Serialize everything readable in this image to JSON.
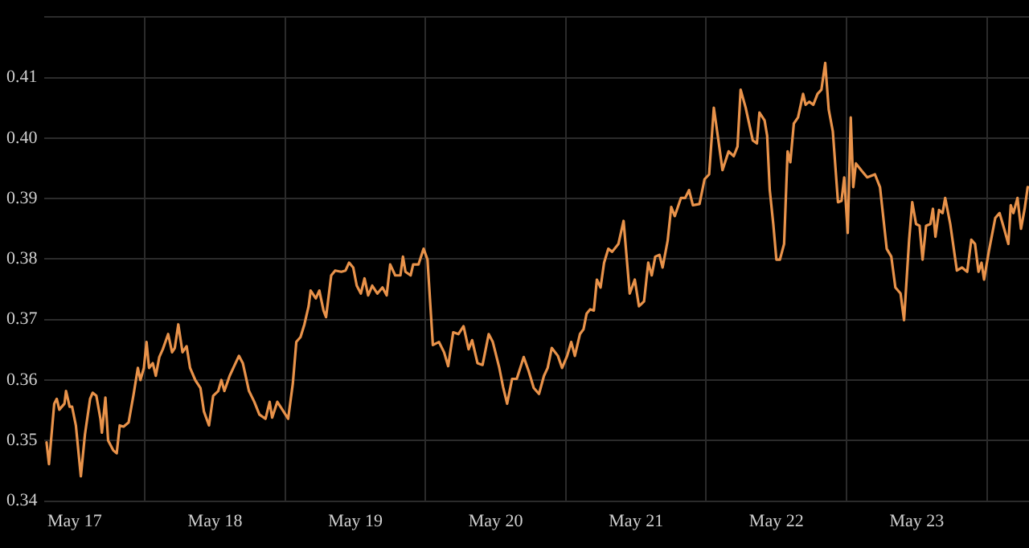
{
  "chart_data": {
    "type": "line",
    "xlim": [
      "--05-16T18:43",
      "--05-23T19:12"
    ],
    "ylim": [
      0.34,
      0.42
    ],
    "xticks": [
      {
        "value": "--05-17",
        "label": "May 17"
      },
      {
        "value": "--05-17T12:00",
        "label": null
      },
      {
        "value": "--05-18",
        "label": "May 18"
      },
      {
        "value": "--05-18T12:00",
        "label": null
      },
      {
        "value": "--05-19",
        "label": "May 19"
      },
      {
        "value": "--05-19T12:00",
        "label": null
      },
      {
        "value": "--05-20",
        "label": "May 20"
      },
      {
        "value": "--05-20T12:00",
        "label": null
      },
      {
        "value": "--05-21",
        "label": "May 21"
      },
      {
        "value": "--05-21T12:00",
        "label": null
      },
      {
        "value": "--05-22",
        "label": "May 22"
      },
      {
        "value": "--05-22T12:00",
        "label": null
      },
      {
        "value": "--05-23",
        "label": "May 23"
      },
      {
        "value": "--05-23T12:00",
        "label": null
      }
    ],
    "yticks": [
      0.34,
      0.35,
      0.36,
      0.37,
      0.38,
      0.39,
      {
        "value": 0.4,
        "label": "0.40"
      },
      0.41,
      {
        "value": 0.42,
        "label": null
      }
    ],
    "grid": true,
    "legend": false,
    "marker": "none",
    "line_style": "solid",
    "series": [
      {
        "color": "#e8924a",
        "x": [
          "--05-16T19:11",
          "--05-16T19:36",
          "--05-16T20:30",
          "--05-16T20:56",
          "--05-16T21:22",
          "--05-16T22:15",
          "--05-16T22:31",
          "--05-16T23:08",
          "--05-16T23:33",
          "--05-17T00:12",
          "--05-17T01:03",
          "--05-17T01:45",
          "--05-17T02:38",
          "--05-17T03:04",
          "--05-17T03:42",
          "--05-17T04:24",
          "--05-17T04:39",
          "--05-17T05:15",
          "--05-17T05:43",
          "--05-17T06:35",
          "--05-17T07:11",
          "--05-17T07:42",
          "--05-17T08:21",
          "--05-17T09:13",
          "--05-17T10:05",
          "--05-17T10:48",
          "--05-17T11:14",
          "--05-17T11:50",
          "--05-17T12:17",
          "--05-17T12:43",
          "--05-17T13:21",
          "--05-17T13:52",
          "--05-17T14:28",
          "--05-17T15:04",
          "--05-17T15:59",
          "--05-17T16:39",
          "--05-17T17:07",
          "--05-17T17:43",
          "--05-17T18:26",
          "--05-17T19:08",
          "--05-17T19:44",
          "--05-17T20:37",
          "--05-17T21:30",
          "--05-17T22:06",
          "--05-17T22:58",
          "--05-17T23:41",
          "--05-18T00:33",
          "--05-18T01:05",
          "--05-18T01:36",
          "--05-18T02:30",
          "--05-18T03:22",
          "--05-18T04:05",
          "--05-18T04:45",
          "--05-18T05:48",
          "--05-18T06:43",
          "--05-18T07:35",
          "--05-18T08:38",
          "--05-18T09:20",
          "--05-18T09:46",
          "--05-18T10:39",
          "--05-18T11:31",
          "--05-18T12:30",
          "--05-18T13:18",
          "--05-18T13:54",
          "--05-18T14:37",
          "--05-18T15:17",
          "--05-18T16:00",
          "--05-18T16:21",
          "--05-18T17:14",
          "--05-18T17:50",
          "--05-18T18:33",
          "--05-18T18:59",
          "--05-18T19:52",
          "--05-18T20:33",
          "--05-18T21:36",
          "--05-18T22:19",
          "--05-18T22:55",
          "--05-18T23:38",
          "--05-19T00:14",
          "--05-19T00:56",
          "--05-19T01:34",
          "--05-19T02:11",
          "--05-19T02:53",
          "--05-19T03:46",
          "--05-19T04:38",
          "--05-19T05:21",
          "--05-19T05:57",
          "--05-19T06:49",
          "--05-19T07:42",
          "--05-19T08:08",
          "--05-19T08:34",
          "--05-19T09:27",
          "--05-19T09:53",
          "--05-19T10:47",
          "--05-19T11:40",
          "--05-19T12:20",
          "--05-19T13:15",
          "--05-19T14:17",
          "--05-19T15:10",
          "--05-19T15:52",
          "--05-19T16:44",
          "--05-19T17:37",
          "--05-19T18:30",
          "--05-19T19:22",
          "--05-19T19:58",
          "--05-19T20:53",
          "--05-19T21:45",
          "--05-19T22:48",
          "--05-19T23:30",
          "--05-20T00:37",
          "--05-20T01:15",
          "--05-20T01:57",
          "--05-20T02:48",
          "--05-20T03:36",
          "--05-20T04:47",
          "--05-20T05:38",
          "--05-20T06:30",
          "--05-20T07:24",
          "--05-20T08:15",
          "--05-20T08:53",
          "--05-20T09:35",
          "--05-20T10:38",
          "--05-20T11:21",
          "--05-20T12:13",
          "--05-20T12:55",
          "--05-20T13:32",
          "--05-20T14:24",
          "--05-20T15:01",
          "--05-20T15:33",
          "--05-20T16:09",
          "--05-20T16:47",
          "--05-20T17:18",
          "--05-20T17:56",
          "--05-20T18:32",
          "--05-20T19:15",
          "--05-20T19:55",
          "--05-20T20:59",
          "--05-20T21:52",
          "--05-20T22:55",
          "--05-20T23:47",
          "--05-21T00:30",
          "--05-21T01:22",
          "--05-21T02:05",
          "--05-21T02:41",
          "--05-21T03:17",
          "--05-21T04:00",
          "--05-21T04:32",
          "--05-21T05:24",
          "--05-21T06:01",
          "--05-21T06:37",
          "--05-21T07:41",
          "--05-21T08:24",
          "--05-21T09:04",
          "--05-21T09:43",
          "--05-21T10:51",
          "--05-21T11:43",
          "--05-21T12:30",
          "--05-21T13:18",
          "--05-21T14:05",
          "--05-21T14:47",
          "--05-21T15:50",
          "--05-21T16:42",
          "--05-21T17:21",
          "--05-21T17:53",
          "--05-21T18:45",
          "--05-21T19:58",
          "--05-21T20:40",
          "--05-21T21:06",
          "--05-21T21:59",
          "--05-21T22:25",
          "--05-21T22:52",
          "--05-21T23:28",
          "--05-22T00:00",
          "--05-22T00:36",
          "--05-22T01:19",
          "--05-22T01:55",
          "--05-22T02:23",
          "--05-22T02:59",
          "--05-22T03:42",
          "--05-22T04:34",
          "--05-22T05:00",
          "--05-22T05:37",
          "--05-22T06:19",
          "--05-22T07:02",
          "--05-22T07:42",
          "--05-22T08:21",
          "--05-22T08:57",
          "--05-22T09:39",
          "--05-22T10:32",
          "--05-22T11:08",
          "--05-22T11:36",
          "--05-22T12:12",
          "--05-22T12:43",
          "--05-22T13:09",
          "--05-22T13:36",
          "--05-22T14:40",
          "--05-22T15:32",
          "--05-22T16:51",
          "--05-22T17:43",
          "--05-22T18:52",
          "--05-22T19:39",
          "--05-22T20:21",
          "--05-22T21:14",
          "--05-22T21:50",
          "--05-22T22:42",
          "--05-22T23:14",
          "--05-22T23:53",
          "--05-23T00:29",
          "--05-23T01:00",
          "--05-23T01:36",
          "--05-23T02:20",
          "--05-23T02:46",
          "--05-23T03:12",
          "--05-23T03:49",
          "--05-23T04:25",
          "--05-23T04:52",
          "--05-23T05:44",
          "--05-23T06:52",
          "--05-23T07:45",
          "--05-23T08:38",
          "--05-23T09:20",
          "--05-23T09:58",
          "--05-23T10:34",
          "--05-23T11:05",
          "--05-23T11:31",
          "--05-23T12:19",
          "--05-23T13:26",
          "--05-23T14:10",
          "--05-23T14:57",
          "--05-23T15:40",
          "--05-23T16:05",
          "--05-23T16:32",
          "--05-23T17:14",
          "--05-23T17:50",
          "--05-23T18:27",
          "--05-23T18:59"
        ],
        "values": [
          0.3497,
          0.3461,
          0.3561,
          0.3569,
          0.3551,
          0.3561,
          0.3582,
          0.3556,
          0.3556,
          0.3525,
          0.3441,
          0.351,
          0.3569,
          0.3579,
          0.3574,
          0.3536,
          0.3513,
          0.3571,
          0.35,
          0.3484,
          0.3479,
          0.3525,
          0.3523,
          0.353,
          0.3577,
          0.362,
          0.36,
          0.362,
          0.3663,
          0.362,
          0.3628,
          0.3607,
          0.3638,
          0.3651,
          0.3676,
          0.3646,
          0.3653,
          0.3692,
          0.3646,
          0.3656,
          0.362,
          0.36,
          0.3587,
          0.3548,
          0.3525,
          0.3574,
          0.3582,
          0.36,
          0.3582,
          0.3607,
          0.3625,
          0.364,
          0.3628,
          0.3582,
          0.3564,
          0.3543,
          0.3536,
          0.3564,
          0.3538,
          0.3564,
          0.3551,
          0.3536,
          0.3594,
          0.3663,
          0.3671,
          0.3692,
          0.3722,
          0.3748,
          0.3735,
          0.3748,
          0.3715,
          0.3704,
          0.3773,
          0.3781,
          0.3779,
          0.3781,
          0.3794,
          0.3786,
          0.3756,
          0.3743,
          0.3768,
          0.374,
          0.3756,
          0.3743,
          0.3753,
          0.374,
          0.3791,
          0.3773,
          0.3773,
          0.3804,
          0.3779,
          0.3773,
          0.3791,
          0.3791,
          0.3817,
          0.3799,
          0.3658,
          0.3663,
          0.3646,
          0.3623,
          0.3679,
          0.3676,
          0.3689,
          0.3651,
          0.3666,
          0.3628,
          0.3625,
          0.3676,
          0.3663,
          0.362,
          0.3589,
          0.3561,
          0.3602,
          0.3602,
          0.3638,
          0.3615,
          0.3587,
          0.3577,
          0.3607,
          0.362,
          0.3653,
          0.364,
          0.362,
          0.364,
          0.3663,
          0.364,
          0.3676,
          0.3684,
          0.371,
          0.3717,
          0.3715,
          0.3766,
          0.3753,
          0.3794,
          0.3817,
          0.3812,
          0.3825,
          0.3863,
          0.3743,
          0.3766,
          0.3722,
          0.373,
          0.3794,
          0.3773,
          0.3804,
          0.3807,
          0.3786,
          0.383,
          0.3886,
          0.3871,
          0.3901,
          0.3901,
          0.3914,
          0.3889,
          0.3891,
          0.3932,
          0.394,
          0.405,
          0.3996,
          0.3947,
          0.3978,
          0.397,
          0.3986,
          0.408,
          0.405,
          0.3996,
          0.3991,
          0.4042,
          0.4029,
          0.4004,
          0.3914,
          0.3858,
          0.3799,
          0.3799,
          0.3825,
          0.3978,
          0.396,
          0.4024,
          0.4034,
          0.4073,
          0.4055,
          0.406,
          0.4055,
          0.4073,
          0.408,
          0.4124,
          0.4047,
          0.4011,
          0.3894,
          0.3896,
          0.3935,
          0.3843,
          0.4034,
          0.3919,
          0.3958,
          0.3945,
          0.3935,
          0.394,
          0.3919,
          0.3817,
          0.3804,
          0.3753,
          0.3743,
          0.3699,
          0.3832,
          0.3894,
          0.3858,
          0.3855,
          0.3799,
          0.3855,
          0.3858,
          0.3883,
          0.3837,
          0.3881,
          0.3876,
          0.3901,
          0.3858,
          0.3781,
          0.3786,
          0.3779,
          0.3832,
          0.3825,
          0.3779,
          0.3794,
          0.3766,
          0.3812,
          0.3868,
          0.3876,
          0.385,
          0.3825,
          0.3889,
          0.3876,
          0.3901,
          0.385,
          0.3883,
          0.3919
        ]
      }
    ]
  }
}
